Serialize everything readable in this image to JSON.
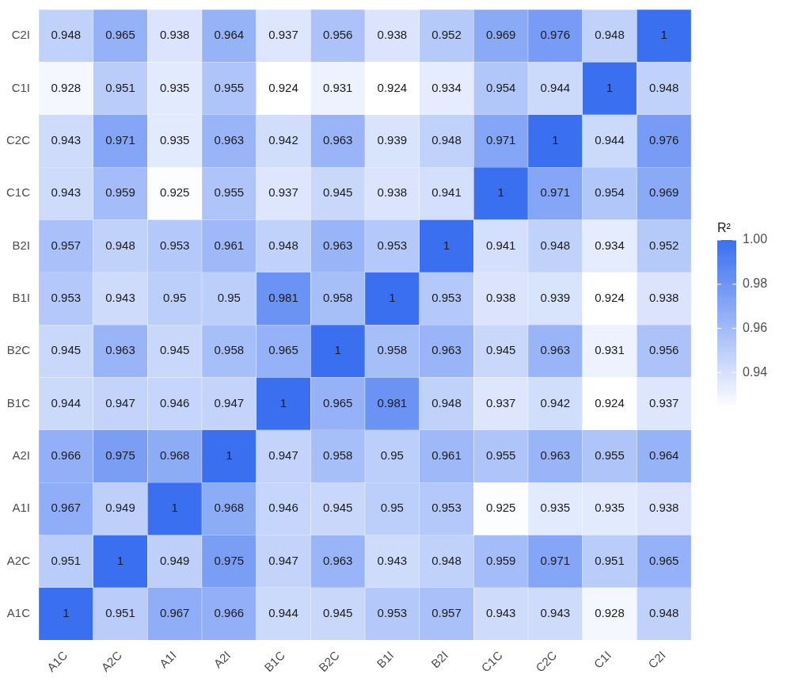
{
  "chart_data": {
    "type": "heatmap",
    "clabel": "R²",
    "categories": [
      "A1C",
      "A2C",
      "A1I",
      "A2I",
      "B1C",
      "B2C",
      "B1I",
      "B2I",
      "C1C",
      "C2C",
      "C1I",
      "C2I"
    ],
    "y_categories": [
      "C2I",
      "C1I",
      "C2C",
      "C1C",
      "B2I",
      "B1I",
      "B2C",
      "B1C",
      "A2I",
      "A1I",
      "A2C",
      "A1C"
    ],
    "cells": [
      [
        0.948,
        0.965,
        0.938,
        0.964,
        0.937,
        0.956,
        0.938,
        0.952,
        0.969,
        0.976,
        0.948,
        1
      ],
      [
        0.928,
        0.951,
        0.935,
        0.955,
        0.924,
        0.931,
        0.924,
        0.934,
        0.954,
        0.944,
        1,
        0.948
      ],
      [
        0.943,
        0.971,
        0.935,
        0.963,
        0.942,
        0.963,
        0.939,
        0.948,
        0.971,
        1,
        0.944,
        0.976
      ],
      [
        0.943,
        0.959,
        0.925,
        0.955,
        0.937,
        0.945,
        0.938,
        0.941,
        1,
        0.971,
        0.954,
        0.969
      ],
      [
        0.957,
        0.948,
        0.953,
        0.961,
        0.948,
        0.963,
        0.953,
        1,
        0.941,
        0.948,
        0.934,
        0.952
      ],
      [
        0.953,
        0.943,
        0.95,
        0.95,
        0.981,
        0.958,
        1,
        0.953,
        0.938,
        0.939,
        0.924,
        0.938
      ],
      [
        0.945,
        0.963,
        0.945,
        0.958,
        0.965,
        1,
        0.958,
        0.963,
        0.945,
        0.963,
        0.931,
        0.956
      ],
      [
        0.944,
        0.947,
        0.946,
        0.947,
        1,
        0.965,
        0.981,
        0.948,
        0.937,
        0.942,
        0.924,
        0.937
      ],
      [
        0.966,
        0.975,
        0.968,
        1,
        0.947,
        0.958,
        0.95,
        0.961,
        0.955,
        0.963,
        0.955,
        0.964
      ],
      [
        0.967,
        0.949,
        1,
        0.968,
        0.946,
        0.945,
        0.95,
        0.953,
        0.925,
        0.935,
        0.935,
        0.938
      ],
      [
        0.951,
        1,
        0.949,
        0.975,
        0.947,
        0.963,
        0.943,
        0.948,
        0.959,
        0.971,
        0.951,
        0.965
      ],
      [
        1,
        0.951,
        0.967,
        0.966,
        0.944,
        0.945,
        0.953,
        0.957,
        0.943,
        0.943,
        0.928,
        0.948
      ]
    ],
    "clim": [
      0.924,
      1
    ],
    "cticks": [
      0.94,
      0.96,
      0.98,
      {
        "value": 1,
        "label": "1.00"
      }
    ],
    "data_labels": true
  }
}
